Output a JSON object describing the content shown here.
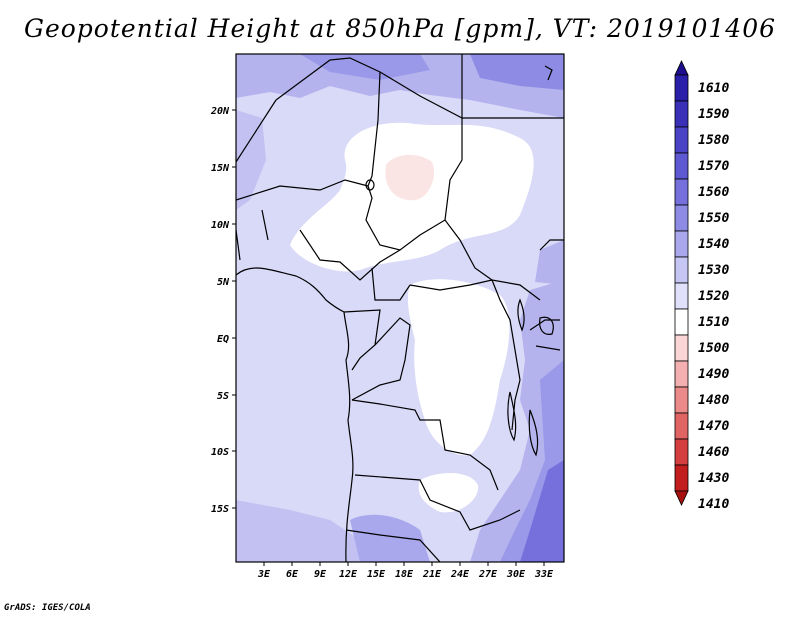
{
  "title": "Geopotential Height at 850hPa [gpm], VT: 2019101406",
  "credit": "GrADS: IGES/COLA",
  "map": {
    "lon_labels": [
      "3E",
      "6E",
      "9E",
      "12E",
      "15E",
      "18E",
      "21E",
      "24E",
      "27E",
      "30E",
      "33E"
    ],
    "lat_labels": [
      "20N",
      "15N",
      "10N",
      "5N",
      "EQ",
      "5S",
      "10S",
      "15S"
    ]
  },
  "colorbar": {
    "levels": [
      "1610",
      "1590",
      "1580",
      "1570",
      "1560",
      "1550",
      "1540",
      "1530",
      "1520",
      "1510",
      "1500",
      "1490",
      "1480",
      "1470",
      "1460",
      "1430",
      "1410"
    ],
    "colors": [
      "#1e0f8c",
      "#2a1fa8",
      "#3a30b8",
      "#4b43c6",
      "#5e58d2",
      "#7570dc",
      "#8e8be4",
      "#a9a8ec",
      "#c6c6f4",
      "#e0e0fa",
      "#ffffff",
      "#fbd6d6",
      "#f4b0b0",
      "#ec8a8a",
      "#e06464",
      "#d43e3e",
      "#c21e1e",
      "#a80f0f"
    ]
  },
  "field_colors": {
    "c1510": "#fbe4e4",
    "c1520": "#ffffff",
    "c1530": "#dcdcfa",
    "c1540": "#c6c6f4",
    "c1550": "#a9a8ec",
    "c1560": "#8e8be4",
    "c1570": "#7570dc"
  }
}
